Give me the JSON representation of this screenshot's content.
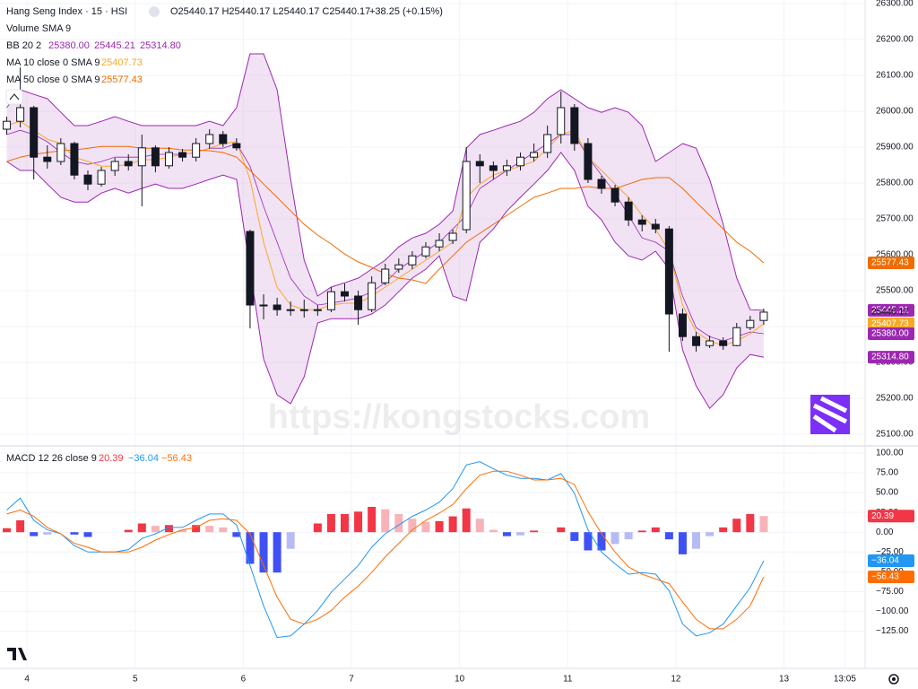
{
  "chart_data": [
    {
      "type": "candlestick",
      "title": "Hang Seng Index · 15 · HSI",
      "ohlc_text": "O25440.17 H25440.17 L25440.17 C25440.17",
      "change_text": "+38.25 (+0.15%)",
      "volume_label": "Volume SMA 9",
      "watermark": "https://kongstocks.com",
      "up_color": "#ffffff",
      "down_color": "#131722",
      "x": [
        0.5,
        1.5,
        2.5,
        3.5,
        4.5,
        5.5,
        6.5,
        7.5,
        8.5,
        9.5,
        10.5,
        11.5,
        12.5,
        13.5,
        14.5,
        15.5,
        16.5,
        17.5,
        18.5,
        19.5,
        20.5,
        21.5,
        22.5,
        23.5,
        24.5,
        25.5,
        26.5,
        27.5,
        28.5,
        29.5,
        30.5,
        31.5,
        32.5,
        33.5,
        34.5,
        35.5,
        36.5,
        37.5,
        38.5,
        39.5,
        40.5,
        41.5,
        42.5,
        43.5,
        44.5,
        45.5,
        46.5,
        47.5,
        48.5,
        49.5,
        50.5,
        51.5,
        52.5,
        53.5,
        54.5,
        55.5,
        56.5
      ],
      "open": [
        25950,
        25972,
        26010,
        25872,
        25860,
        25910,
        25822,
        25797,
        25835,
        25860,
        25848,
        25898,
        25848,
        25885,
        25872,
        25910,
        25935,
        25910,
        25665,
        25460,
        25460,
        25447,
        25447,
        25447,
        25447,
        25497,
        25485,
        25447,
        25522,
        25560,
        25572,
        25597,
        25622,
        25640,
        25670,
        25860,
        25848,
        25835,
        25848,
        25872,
        25885,
        25935,
        26010,
        25910,
        25810,
        25785,
        25747,
        25697,
        25685,
        25672,
        25435,
        25372,
        25347,
        25360,
        25347,
        25397,
        25417
      ],
      "high": [
        25985,
        26122,
        26015,
        25905,
        25925,
        25915,
        25835,
        25845,
        25870,
        25880,
        25935,
        25905,
        25900,
        25895,
        25925,
        25950,
        25945,
        25925,
        25670,
        25490,
        25480,
        25470,
        25475,
        25460,
        25510,
        25520,
        25500,
        25540,
        25575,
        25590,
        25610,
        25635,
        25660,
        25670,
        25900,
        25880,
        25860,
        25865,
        25885,
        25910,
        25960,
        26055,
        26020,
        25925,
        25820,
        25795,
        25760,
        25710,
        25700,
        25680,
        25450,
        25385,
        25375,
        25370,
        25410,
        25430,
        25450
      ],
      "low": [
        25935,
        25955,
        25810,
        25840,
        25850,
        25810,
        25780,
        25790,
        25820,
        25835,
        25735,
        25830,
        25840,
        25860,
        25860,
        25895,
        25900,
        25890,
        25395,
        25420,
        25430,
        25430,
        25425,
        25430,
        25440,
        25470,
        25405,
        25440,
        25515,
        25550,
        25560,
        25590,
        25610,
        25630,
        25660,
        25800,
        25810,
        25820,
        25835,
        25860,
        25870,
        25910,
        25890,
        25800,
        25770,
        25735,
        25680,
        25665,
        25660,
        25330,
        25360,
        25330,
        25340,
        25335,
        25345,
        25390,
        25405
      ],
      "close": [
        25972,
        26010,
        25872,
        25860,
        25910,
        25822,
        25797,
        25835,
        25860,
        25848,
        25898,
        25848,
        25885,
        25872,
        25910,
        25935,
        25910,
        25898,
        25460,
        25460,
        25447,
        25447,
        25447,
        25447,
        25497,
        25485,
        25447,
        25522,
        25560,
        25572,
        25597,
        25622,
        25640,
        25660,
        25860,
        25848,
        25835,
        25848,
        25872,
        25885,
        25935,
        26010,
        25910,
        25810,
        25785,
        25747,
        25697,
        25685,
        25672,
        25435,
        25372,
        25347,
        25360,
        25347,
        25397,
        25417,
        25440.17
      ],
      "close_label": "25440.17",
      "overlays": [
        {
          "name": "BB 20 2",
          "color": "#9c27b0",
          "fill": "#e1bee7",
          "basis": [
            25935,
            25947,
            25935,
            25915,
            25885,
            25860,
            25852,
            25860,
            25872,
            25872,
            25872,
            25880,
            25880,
            25880,
            25885,
            25897,
            25897,
            25910,
            25847,
            25735,
            25635,
            25535,
            25485,
            25460,
            25465,
            25472,
            25480,
            25497,
            25522,
            25560,
            25585,
            25610,
            25635,
            25672,
            25710,
            25785,
            25810,
            25835,
            25860,
            25885,
            25910,
            25935,
            25935,
            25872,
            25822,
            25772,
            25710,
            25647,
            25635,
            25610,
            25485,
            25397,
            25372,
            25360,
            25372,
            25385,
            25380
          ],
          "upper": [
            26010,
            26060,
            26047,
            26035,
            25997,
            25960,
            25960,
            25972,
            25985,
            25972,
            25960,
            25960,
            25960,
            25960,
            25960,
            25972,
            25960,
            26010,
            26160,
            26160,
            26060,
            25810,
            25585,
            25485,
            25510,
            25522,
            25535,
            25560,
            25585,
            25622,
            25647,
            25660,
            25685,
            25722,
            25897,
            25935,
            25947,
            25960,
            25972,
            25997,
            26035,
            26060,
            26035,
            26010,
            25997,
            26010,
            25997,
            25960,
            25860,
            25885,
            25910,
            25897,
            25810,
            25685,
            25535,
            25447,
            25445.21
          ],
          "lower": [
            25860,
            25835,
            25835,
            25797,
            25760,
            25747,
            25747,
            25772,
            25785,
            25772,
            25785,
            25797,
            25785,
            25785,
            25797,
            25810,
            25822,
            25810,
            25560,
            25310,
            25210,
            25185,
            25260,
            25410,
            25422,
            25422,
            25422,
            25435,
            25460,
            25497,
            25535,
            25560,
            25597,
            25485,
            25472,
            25635,
            25672,
            25722,
            25760,
            25797,
            25835,
            25885,
            25835,
            25735,
            25697,
            25635,
            25597,
            25585,
            25610,
            25560,
            25335,
            25235,
            25172,
            25210,
            25285,
            25322,
            25314.8
          ],
          "basis_label": "25380.00",
          "upper_label": "25445.21",
          "lower_label": "25314.80"
        },
        {
          "name": "MA 10 close 0 SMA 9",
          "color": "#f9a825",
          "values": [
            25960,
            25972,
            25947,
            25922,
            25910,
            25872,
            25860,
            25847,
            25847,
            25852,
            25865,
            25865,
            25872,
            25880,
            25885,
            25897,
            25910,
            25915,
            25810,
            25635,
            25510,
            25460,
            25447,
            25447,
            25460,
            25465,
            25465,
            25485,
            25510,
            25535,
            25560,
            25585,
            25610,
            25635,
            25760,
            25797,
            25822,
            25835,
            25847,
            25860,
            25897,
            25935,
            25947,
            25872,
            25835,
            25797,
            25760,
            25710,
            25672,
            25610,
            25460,
            25385,
            25360,
            25347,
            25360,
            25380,
            25407.73
          ],
          "value_label": "25407.73"
        },
        {
          "name": "MA 50 close 0 SMA 9",
          "color": "#ef6c00",
          "values": [
            25860,
            25872,
            25880,
            25885,
            25890,
            25892,
            25897,
            25902,
            25902,
            25902,
            25897,
            25897,
            25897,
            25892,
            25892,
            25890,
            25885,
            25872,
            25835,
            25797,
            25760,
            25722,
            25685,
            25655,
            25630,
            25602,
            25580,
            25565,
            25547,
            25535,
            25530,
            25520,
            25560,
            25597,
            25635,
            25660,
            25685,
            25710,
            25735,
            25760,
            25772,
            25785,
            25785,
            25790,
            25785,
            25785,
            25797,
            25810,
            25815,
            25815,
            25785,
            25747,
            25710,
            25672,
            25635,
            25610,
            25577.43
          ],
          "value_label": "25577.43"
        }
      ],
      "xlim": [
        0,
        64
      ],
      "xticks": [
        {
          "value": 2,
          "label": "4"
        },
        {
          "value": 10,
          "label": "5"
        },
        {
          "value": 18,
          "label": "6"
        },
        {
          "value": 26,
          "label": "7"
        },
        {
          "value": 34,
          "label": "10"
        },
        {
          "value": 42,
          "label": "11"
        },
        {
          "value": 50,
          "label": "12"
        },
        {
          "value": 58,
          "label": "13"
        },
        {
          "value": 62.5,
          "label": "13:05"
        }
      ],
      "ylim": [
        25070,
        26310
      ],
      "yticks": [
        {
          "value": 25100,
          "label": "25100.00"
        },
        {
          "value": 25200,
          "label": "25200.00"
        },
        {
          "value": 25300,
          "label": "25300.00"
        },
        {
          "value": 25400,
          "label": "25400.00"
        },
        {
          "value": 25500,
          "label": "25500.00"
        },
        {
          "value": 25600,
          "label": "25600.00"
        },
        {
          "value": 25700,
          "label": "25700.00"
        },
        {
          "value": 25800,
          "label": "25800.00"
        },
        {
          "value": 25900,
          "label": "25900.00"
        },
        {
          "value": 26000,
          "label": "26000.00"
        },
        {
          "value": 26100,
          "label": "26100.00"
        },
        {
          "value": 26200,
          "label": "26200.00"
        },
        {
          "value": 26300,
          "label": "26300.00"
        }
      ],
      "grid": true
    },
    {
      "type": "macd",
      "title": "MACD 12 26 close 9",
      "histogram": {
        "colors": {
          "up_strong": "#f23645",
          "up_weak": "#f7b3b8",
          "down_strong": "#3f51f5",
          "down_weak": "#b6bcf3"
        },
        "values": [
          5,
          15,
          -5,
          -3,
          0,
          -3,
          -6,
          0,
          0,
          3,
          11,
          8,
          9,
          3,
          9,
          8,
          6,
          -6,
          -40,
          -51,
          -51,
          -21,
          0,
          11,
          23,
          23,
          26,
          32,
          29,
          23,
          17,
          13,
          14,
          20,
          30,
          17,
          3,
          -5,
          -4,
          2,
          0,
          6,
          -11,
          -23,
          -23,
          -15,
          -9,
          2,
          6,
          -9,
          -28,
          -21,
          -5,
          6,
          17,
          23,
          20.39
        ],
        "value_label": "20.39",
        "label_color": "#f23645"
      },
      "macd": {
        "color": "#2196f3",
        "values": [
          28,
          43,
          15,
          3,
          -2,
          -17,
          -25,
          -25,
          -25,
          -22,
          -8,
          -2,
          6,
          6,
          15,
          23,
          23,
          9,
          -42,
          -93,
          -133,
          -131,
          -116,
          -99,
          -76,
          -59,
          -42,
          -19,
          -2,
          9,
          20,
          28,
          38,
          55,
          85,
          89,
          80,
          72,
          68,
          68,
          66,
          74,
          49,
          3,
          -25,
          -40,
          -53,
          -51,
          -53,
          -74,
          -116,
          -131,
          -127,
          -116,
          -93,
          -70,
          -36.04
        ],
        "value_label": "−36.04"
      },
      "signal": {
        "color": "#ff6d00",
        "values": [
          23,
          28,
          20,
          6,
          -2,
          -14,
          -19,
          -25,
          -25,
          -25,
          -19,
          -10,
          -3,
          3,
          6,
          15,
          17,
          15,
          -2,
          -42,
          -82,
          -110,
          -116,
          -110,
          -99,
          -82,
          -68,
          -51,
          -31,
          -14,
          3,
          15,
          24,
          35,
          55,
          72,
          77,
          77,
          72,
          66,
          66,
          68,
          60,
          26,
          -2,
          -25,
          -44,
          -53,
          -59,
          -65,
          -88,
          -110,
          -122,
          -122,
          -110,
          -93,
          -56.43
        ],
        "value_label": "−56.43"
      },
      "ylim": [
        -172,
        109
      ],
      "yticks": [
        {
          "value": 100,
          "label": "100.00"
        },
        {
          "value": 75,
          "label": "75.00"
        },
        {
          "value": 50,
          "label": "50.00"
        },
        {
          "value": 25,
          "label": "25.00"
        },
        {
          "value": 0,
          "label": "0.00"
        },
        {
          "value": -25,
          "label": "−25.00"
        },
        {
          "value": -50,
          "label": "−50.00"
        },
        {
          "value": -75,
          "label": "−75.00"
        },
        {
          "value": -100,
          "label": "−100.00"
        },
        {
          "value": -125,
          "label": "−125.00"
        }
      ],
      "grid": true
    }
  ]
}
